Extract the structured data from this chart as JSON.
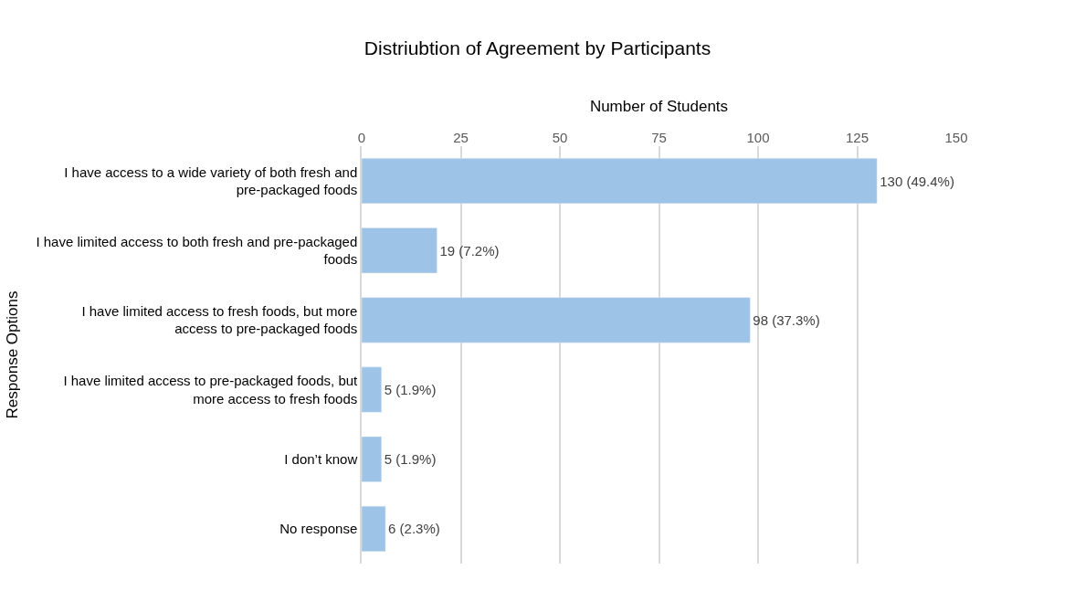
{
  "chart_data": {
    "type": "bar",
    "orientation": "horizontal",
    "title": "Distriubtion of Agreement by Participants",
    "xlabel": "Number of Students",
    "ylabel": "Response Options",
    "categories": [
      "I have access to a wide variety of both fresh and pre-packaged foods",
      "I have limited access to both fresh and pre-packaged foods",
      "I have limited access to fresh foods, but more access to pre-packaged foods",
      "I have limited access to pre-packaged foods, but more access to fresh foods",
      "I don’t know",
      "No response"
    ],
    "values": [
      130,
      19,
      98,
      5,
      5,
      6
    ],
    "value_labels": [
      "130 (49.4%)",
      "19 (7.2%)",
      "98 (37.3%)",
      "5 (1.9%)",
      "5 (1.9%)",
      "6 (2.3%)"
    ],
    "color": "#9dc3e6",
    "xlim": [
      0,
      150
    ],
    "xticks": [
      0,
      25,
      50,
      75,
      100,
      125,
      150
    ],
    "grid": "x",
    "legend": false
  }
}
